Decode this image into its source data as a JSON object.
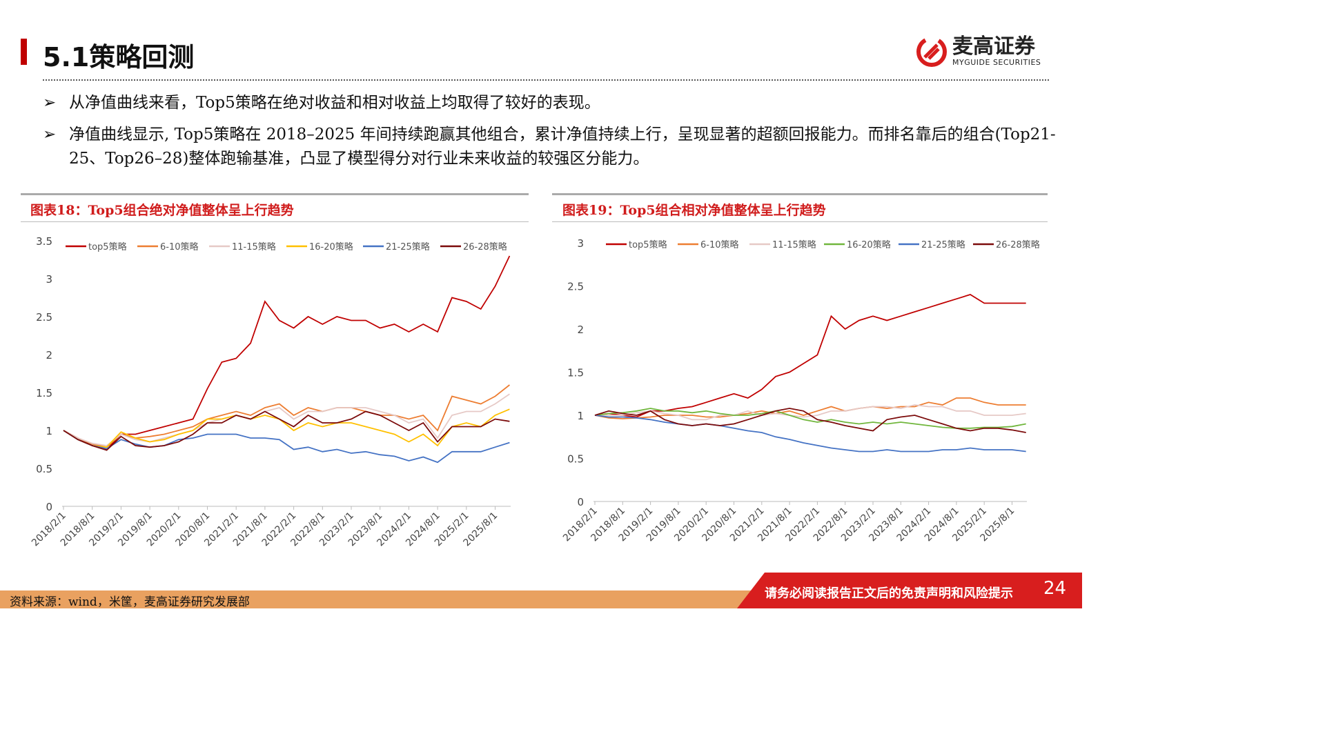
{
  "header": {
    "title": "5.1策略回测",
    "logo_cn": "麦高证券",
    "logo_en": "MYGUIDE SECURITIES"
  },
  "bullets": [
    {
      "icon": "arrow-bullet-icon",
      "text": "从净值曲线来看，Top5策略在绝对收益和相对收益上均取得了较好的表现。"
    },
    {
      "icon": "arrow-bullet-icon",
      "text": "净值曲线显示, Top5策略在 2018–2025 年间持续跑赢其他组合，累计净值持续上行，呈现显著的超额回报能力。而排名靠后的组合(Top21-25、Top26–28)整体跑输基准，凸显了模型得分对行业未来收益的较强区分能力。"
    }
  ],
  "footer": {
    "source": "资料来源：wind，米筐，麦高证券研究发展部",
    "disclaimer": "请务必阅读报告正文后的免责声明和风险提示",
    "page": "24"
  },
  "colors": {
    "top5": "#c00000",
    "6-10": "#ed7d31",
    "11-15": "#e6c9c6",
    "16-20_abs": "#ffc000",
    "16-20_rel": "#70b63c",
    "21-25": "#4472c4",
    "26-28": "#7b0a0a",
    "title_red": "#d01c1c",
    "footer_orange": "#e9a160"
  },
  "chart_data": [
    {
      "type": "line",
      "title": "图表18：Top5组合绝对净值整体呈上行趋势",
      "ylim": [
        0,
        3.5
      ],
      "yticks": [
        "0",
        "0.5",
        "1",
        "1.5",
        "2",
        "2.5",
        "3",
        "3.5"
      ],
      "xticks": [
        "2018/2/1",
        "2018/8/1",
        "2019/2/1",
        "2019/8/1",
        "2020/2/1",
        "2020/8/1",
        "2021/2/1",
        "2021/8/1",
        "2022/2/1",
        "2022/8/1",
        "2023/2/1",
        "2023/8/1",
        "2024/2/1",
        "2024/8/1",
        "2025/2/1",
        "2025/8/1"
      ],
      "legend": "top",
      "grid": false,
      "x": [
        "2018/2",
        "2018/5",
        "2018/8",
        "2018/11",
        "2019/2",
        "2019/5",
        "2019/8",
        "2019/11",
        "2020/2",
        "2020/5",
        "2020/8",
        "2020/11",
        "2021/2",
        "2021/5",
        "2021/8",
        "2021/11",
        "2022/2",
        "2022/5",
        "2022/8",
        "2022/11",
        "2023/2",
        "2023/5",
        "2023/8",
        "2023/11",
        "2024/2",
        "2024/5",
        "2024/8",
        "2024/11",
        "2025/2",
        "2025/5",
        "2025/8",
        "2025/11"
      ],
      "series": [
        {
          "name": "top5策略",
          "color": "#c00000",
          "values": [
            1.0,
            0.9,
            0.8,
            0.75,
            0.95,
            0.95,
            1.0,
            1.05,
            1.1,
            1.15,
            1.55,
            1.9,
            1.95,
            2.15,
            2.7,
            2.45,
            2.35,
            2.5,
            2.4,
            2.5,
            2.45,
            2.45,
            2.35,
            2.4,
            2.3,
            2.4,
            2.3,
            2.75,
            2.7,
            2.6,
            2.9,
            3.3
          ]
        },
        {
          "name": "6-10策略",
          "color": "#ed7d31",
          "values": [
            1.0,
            0.9,
            0.82,
            0.78,
            0.95,
            0.9,
            0.92,
            0.95,
            1.0,
            1.05,
            1.15,
            1.2,
            1.25,
            1.2,
            1.3,
            1.35,
            1.2,
            1.3,
            1.25,
            1.3,
            1.3,
            1.25,
            1.2,
            1.2,
            1.15,
            1.2,
            1.0,
            1.45,
            1.4,
            1.35,
            1.45,
            1.6
          ]
        },
        {
          "name": "11-15策略",
          "color": "#e6c9c6",
          "values": [
            1.0,
            0.9,
            0.83,
            0.8,
            0.95,
            0.88,
            0.85,
            0.9,
            0.95,
            1.0,
            1.1,
            1.15,
            1.2,
            1.15,
            1.25,
            1.3,
            1.15,
            1.25,
            1.25,
            1.3,
            1.3,
            1.3,
            1.25,
            1.2,
            1.1,
            1.15,
            0.9,
            1.2,
            1.25,
            1.25,
            1.35,
            1.48
          ]
        },
        {
          "name": "16-20策略",
          "color": "#ffc000",
          "values": [
            1.0,
            0.88,
            0.8,
            0.78,
            0.98,
            0.9,
            0.85,
            0.88,
            0.95,
            1.0,
            1.15,
            1.15,
            1.2,
            1.15,
            1.2,
            1.15,
            1.0,
            1.1,
            1.05,
            1.1,
            1.1,
            1.05,
            1.0,
            0.95,
            0.85,
            0.95,
            0.8,
            1.05,
            1.1,
            1.05,
            1.2,
            1.28
          ]
        },
        {
          "name": "21-25策略",
          "color": "#4472c4",
          "values": [
            1.0,
            0.88,
            0.8,
            0.76,
            0.88,
            0.82,
            0.78,
            0.8,
            0.88,
            0.9,
            0.95,
            0.95,
            0.95,
            0.9,
            0.9,
            0.88,
            0.75,
            0.78,
            0.72,
            0.75,
            0.7,
            0.72,
            0.68,
            0.66,
            0.6,
            0.65,
            0.58,
            0.72,
            0.72,
            0.72,
            0.78,
            0.84
          ]
        },
        {
          "name": "26-28策略",
          "color": "#7b0a0a",
          "values": [
            1.0,
            0.88,
            0.8,
            0.74,
            0.92,
            0.8,
            0.78,
            0.8,
            0.85,
            0.95,
            1.1,
            1.1,
            1.2,
            1.15,
            1.25,
            1.15,
            1.05,
            1.2,
            1.1,
            1.1,
            1.15,
            1.25,
            1.2,
            1.1,
            1.0,
            1.1,
            0.85,
            1.05,
            1.05,
            1.05,
            1.15,
            1.12
          ]
        }
      ]
    },
    {
      "type": "line",
      "title": "图表19：Top5组合相对净值整体呈上行趋势",
      "ylim": [
        0,
        3
      ],
      "yticks": [
        "0",
        "0.5",
        "1",
        "1.5",
        "2",
        "2.5",
        "3"
      ],
      "xticks": [
        "2018/2/1",
        "2018/8/1",
        "2019/2/1",
        "2019/8/1",
        "2020/2/1",
        "2020/8/1",
        "2021/2/1",
        "2021/8/1",
        "2022/2/1",
        "2022/8/1",
        "2023/2/1",
        "2023/8/1",
        "2024/2/1",
        "2024/8/1",
        "2025/2/1",
        "2025/8/1"
      ],
      "legend": "top",
      "grid": false,
      "x": [
        "2018/2",
        "2018/5",
        "2018/8",
        "2018/11",
        "2019/2",
        "2019/5",
        "2019/8",
        "2019/11",
        "2020/2",
        "2020/5",
        "2020/8",
        "2020/11",
        "2021/2",
        "2021/5",
        "2021/8",
        "2021/11",
        "2022/2",
        "2022/5",
        "2022/8",
        "2022/11",
        "2023/2",
        "2023/5",
        "2023/8",
        "2023/11",
        "2024/2",
        "2024/5",
        "2024/8",
        "2024/11",
        "2025/2",
        "2025/5",
        "2025/8",
        "2025/11"
      ],
      "series": [
        {
          "name": "top5策略",
          "color": "#c00000",
          "values": [
            1.0,
            1.02,
            1.0,
            0.98,
            1.05,
            1.05,
            1.08,
            1.1,
            1.15,
            1.2,
            1.25,
            1.2,
            1.3,
            1.45,
            1.5,
            1.6,
            1.7,
            2.15,
            2.0,
            2.1,
            2.15,
            2.1,
            2.15,
            2.2,
            2.25,
            2.3,
            2.35,
            2.4,
            2.3,
            2.3,
            2.3,
            2.3
          ]
        },
        {
          "name": "6-10策略",
          "color": "#ed7d31",
          "values": [
            1.0,
            0.97,
            0.96,
            0.97,
            0.98,
            1.0,
            1.0,
            1.0,
            0.98,
            0.98,
            1.0,
            1.02,
            1.05,
            1.02,
            1.05,
            1.0,
            1.05,
            1.1,
            1.05,
            1.08,
            1.1,
            1.08,
            1.1,
            1.1,
            1.15,
            1.12,
            1.2,
            1.2,
            1.15,
            1.12,
            1.12,
            1.12
          ]
        },
        {
          "name": "11-15策略",
          "color": "#e6c9c6",
          "values": [
            1.0,
            1.0,
            1.0,
            1.03,
            1.05,
            1.02,
            1.0,
            0.95,
            0.95,
            1.0,
            1.0,
            1.05,
            1.0,
            1.02,
            1.0,
            0.98,
            1.0,
            1.05,
            1.05,
            1.08,
            1.1,
            1.1,
            1.08,
            1.12,
            1.1,
            1.1,
            1.05,
            1.05,
            1.0,
            1.0,
            1.0,
            1.02
          ]
        },
        {
          "name": "16-20策略",
          "color": "#70b63c",
          "values": [
            1.0,
            1.02,
            1.03,
            1.05,
            1.08,
            1.05,
            1.05,
            1.03,
            1.05,
            1.02,
            1.0,
            1.0,
            1.02,
            1.05,
            1.0,
            0.95,
            0.92,
            0.95,
            0.92,
            0.9,
            0.92,
            0.9,
            0.92,
            0.9,
            0.88,
            0.86,
            0.85,
            0.85,
            0.86,
            0.86,
            0.87,
            0.9
          ]
        },
        {
          "name": "21-25策略",
          "color": "#4472c4",
          "values": [
            1.0,
            0.98,
            0.98,
            0.97,
            0.95,
            0.92,
            0.9,
            0.88,
            0.9,
            0.88,
            0.85,
            0.82,
            0.8,
            0.75,
            0.72,
            0.68,
            0.65,
            0.62,
            0.6,
            0.58,
            0.58,
            0.6,
            0.58,
            0.58,
            0.58,
            0.6,
            0.6,
            0.62,
            0.6,
            0.6,
            0.6,
            0.58
          ]
        },
        {
          "name": "26-28策略",
          "color": "#7b0a0a",
          "values": [
            1.0,
            1.05,
            1.02,
            1.0,
            1.05,
            0.95,
            0.9,
            0.88,
            0.9,
            0.88,
            0.9,
            0.95,
            1.0,
            1.05,
            1.08,
            1.05,
            0.95,
            0.92,
            0.88,
            0.85,
            0.82,
            0.95,
            0.98,
            1.0,
            0.95,
            0.9,
            0.85,
            0.82,
            0.85,
            0.85,
            0.83,
            0.8
          ]
        }
      ]
    }
  ]
}
